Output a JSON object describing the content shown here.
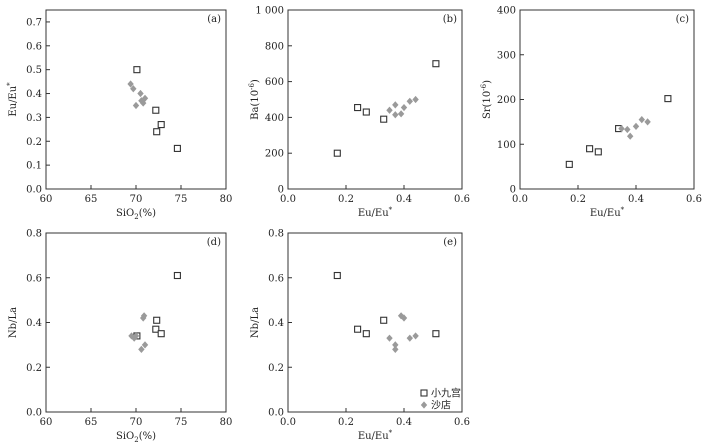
{
  "legend": {
    "entries": [
      {
        "label": "小九宫",
        "marker": "square"
      },
      {
        "label": "沙店",
        "marker": "diamond"
      }
    ]
  },
  "colors": {
    "square_stroke": "#333333",
    "diamond_fill": "#9a9a9a"
  },
  "chart_data": [
    {
      "type": "scatter",
      "panel_label": "(a)",
      "xlabel": "SiO2(%)",
      "ylabel": "Eu/Eu*",
      "xlim": [
        60,
        80
      ],
      "ylim": [
        0,
        0.75
      ],
      "xticks": [
        60,
        65,
        70,
        75,
        80
      ],
      "yticks": [
        0,
        0.1,
        0.2,
        0.3,
        0.4,
        0.5,
        0.6,
        0.7
      ],
      "xtick_labels": [
        "60",
        "65",
        "70",
        "75",
        "80"
      ],
      "ytick_labels": [
        "0.0",
        "0.1",
        "0.2",
        "0.3",
        "0.4",
        "0.5",
        "0.6",
        "0.7"
      ],
      "series": [
        {
          "name": "小九宫",
          "marker": "square",
          "x": [
            70.1,
            72.2,
            72.3,
            72.8,
            74.6
          ],
          "y": [
            0.5,
            0.33,
            0.24,
            0.27,
            0.17
          ]
        },
        {
          "name": "沙店",
          "marker": "diamond",
          "x": [
            69.4,
            69.7,
            70.0,
            70.5,
            70.6,
            70.8,
            71.0
          ],
          "y": [
            0.44,
            0.42,
            0.35,
            0.4,
            0.37,
            0.36,
            0.38
          ]
        }
      ]
    },
    {
      "type": "scatter",
      "panel_label": "(b)",
      "xlabel": "Eu/Eu*",
      "ylabel": "Ba(10-6)",
      "xlim": [
        0,
        0.6
      ],
      "ylim": [
        0,
        1000
      ],
      "xticks": [
        0,
        0.2,
        0.4,
        0.6
      ],
      "yticks": [
        0,
        200,
        400,
        600,
        800,
        1000
      ],
      "xtick_labels": [
        "0.0",
        "0.2",
        "0.4",
        "0.6"
      ],
      "ytick_labels": [
        "0",
        "200",
        "400",
        "600",
        "800",
        "1 000"
      ],
      "series": [
        {
          "name": "小九宫",
          "marker": "square",
          "x": [
            0.17,
            0.24,
            0.27,
            0.33,
            0.51
          ],
          "y": [
            200,
            455,
            430,
            390,
            700
          ]
        },
        {
          "name": "沙店",
          "marker": "diamond",
          "x": [
            0.35,
            0.37,
            0.37,
            0.39,
            0.4,
            0.42,
            0.44
          ],
          "y": [
            440,
            470,
            415,
            420,
            455,
            490,
            500
          ]
        }
      ]
    },
    {
      "type": "scatter",
      "panel_label": "(c)",
      "xlabel": "Eu/Eu*",
      "ylabel": "Sr(10-6)",
      "xlim": [
        0,
        0.6
      ],
      "ylim": [
        0,
        400
      ],
      "xticks": [
        0,
        0.2,
        0.4,
        0.6
      ],
      "yticks": [
        0,
        100,
        200,
        300,
        400
      ],
      "xtick_labels": [
        "0.0",
        "0.2",
        "0.4",
        "0.6"
      ],
      "ytick_labels": [
        "0",
        "100",
        "200",
        "300",
        "400"
      ],
      "series": [
        {
          "name": "小九宫",
          "marker": "square",
          "x": [
            0.17,
            0.24,
            0.27,
            0.34,
            0.51
          ],
          "y": [
            55,
            90,
            83,
            135,
            202
          ]
        },
        {
          "name": "沙店",
          "marker": "diamond",
          "x": [
            0.35,
            0.37,
            0.38,
            0.4,
            0.42,
            0.44
          ],
          "y": [
            135,
            133,
            118,
            140,
            155,
            150
          ]
        }
      ]
    },
    {
      "type": "scatter",
      "panel_label": "(d)",
      "xlabel": "SiO2(%)",
      "ylabel": "Nb/La",
      "xlim": [
        60,
        80
      ],
      "ylim": [
        0,
        0.8
      ],
      "xticks": [
        60,
        65,
        70,
        75,
        80
      ],
      "yticks": [
        0,
        0.2,
        0.4,
        0.6,
        0.8
      ],
      "xtick_labels": [
        "60",
        "65",
        "70",
        "75",
        "80"
      ],
      "ytick_labels": [
        "0.0",
        "0.2",
        "0.4",
        "0.6",
        "0.8"
      ],
      "series": [
        {
          "name": "小九宫",
          "marker": "square",
          "x": [
            70.1,
            72.2,
            72.3,
            72.8,
            74.6
          ],
          "y": [
            0.34,
            0.37,
            0.41,
            0.35,
            0.61
          ]
        },
        {
          "name": "沙店",
          "marker": "diamond",
          "x": [
            69.5,
            69.8,
            70.0,
            70.6,
            70.8,
            70.9,
            71.0
          ],
          "y": [
            0.34,
            0.33,
            0.34,
            0.28,
            0.42,
            0.43,
            0.3
          ]
        }
      ]
    },
    {
      "type": "scatter",
      "panel_label": "(e)",
      "xlabel": "Eu/Eu*",
      "ylabel": "Nb/La",
      "xlim": [
        0,
        0.6
      ],
      "ylim": [
        0,
        0.8
      ],
      "xticks": [
        0,
        0.2,
        0.4,
        0.6
      ],
      "yticks": [
        0,
        0.2,
        0.4,
        0.6,
        0.8
      ],
      "xtick_labels": [
        "0.0",
        "0.2",
        "0.4",
        "0.6"
      ],
      "ytick_labels": [
        "0.0",
        "0.2",
        "0.4",
        "0.6",
        "0.8"
      ],
      "series": [
        {
          "name": "小九宫",
          "marker": "square",
          "x": [
            0.17,
            0.24,
            0.27,
            0.33,
            0.51
          ],
          "y": [
            0.61,
            0.37,
            0.35,
            0.41,
            0.35
          ]
        },
        {
          "name": "沙店",
          "marker": "diamond",
          "x": [
            0.35,
            0.37,
            0.37,
            0.39,
            0.4,
            0.42,
            0.44
          ],
          "y": [
            0.33,
            0.3,
            0.28,
            0.43,
            0.42,
            0.33,
            0.34
          ]
        }
      ]
    }
  ]
}
